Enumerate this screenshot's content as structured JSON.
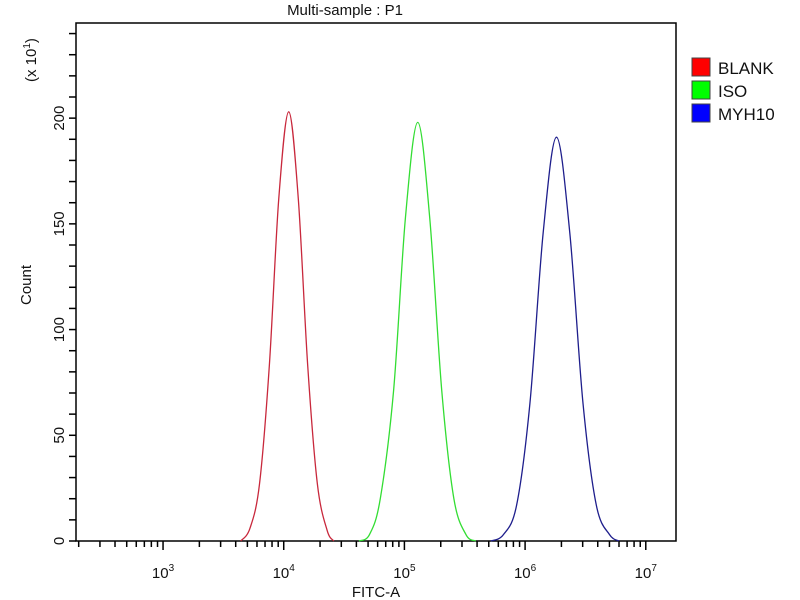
{
  "chart_data": {
    "type": "line",
    "title": "Multi-sample : P1",
    "xlabel": "FITC-A",
    "ylabel": "Count",
    "y_multiplier_label": "(x 10",
    "y_multiplier_exp": "1",
    "x_scale": "log",
    "xlim": [
      190,
      17800000
    ],
    "ylim": [
      0,
      245
    ],
    "x_ticks": [
      {
        "value": 1000,
        "base": "10",
        "exp": "3"
      },
      {
        "value": 10000,
        "base": "10",
        "exp": "4"
      },
      {
        "value": 100000,
        "base": "10",
        "exp": "5"
      },
      {
        "value": 1000000,
        "base": "10",
        "exp": "6"
      },
      {
        "value": 10000000,
        "base": "10",
        "exp": "7"
      }
    ],
    "y_ticks": [
      "0",
      "50",
      "100",
      "150",
      "200"
    ],
    "grid": false,
    "legend_position": "right",
    "series": [
      {
        "name": "BLANK",
        "color": "#ff0000",
        "line_color": "#c8283c",
        "x": [
          4400,
          5250,
          6300,
          7600,
          9100,
          11000,
          13200,
          15800,
          19000,
          22900,
          26000
        ],
        "y": [
          0,
          6,
          27,
          83,
          162,
          203,
          162,
          83,
          27,
          5,
          0
        ]
      },
      {
        "name": "ISO",
        "color": "#00ff00",
        "line_color": "#33dd33",
        "x": [
          42000,
          51300,
          63100,
          81300,
          102000,
          129000,
          162000,
          204000,
          257000,
          324000,
          390000
        ],
        "y": [
          0,
          3,
          20,
          71,
          153,
          198,
          153,
          71,
          20,
          3,
          0
        ]
      },
      {
        "name": "MYH10",
        "color": "#0000ff",
        "line_color": "#1e1e8c",
        "x": [
          520000,
          661000,
          851000,
          1096000,
          1413000,
          1820000,
          2344000,
          3020000,
          3890000,
          5010000,
          6000000
        ],
        "y": [
          0,
          3,
          17,
          65,
          146,
          191,
          146,
          65,
          17,
          3,
          0
        ]
      }
    ]
  }
}
